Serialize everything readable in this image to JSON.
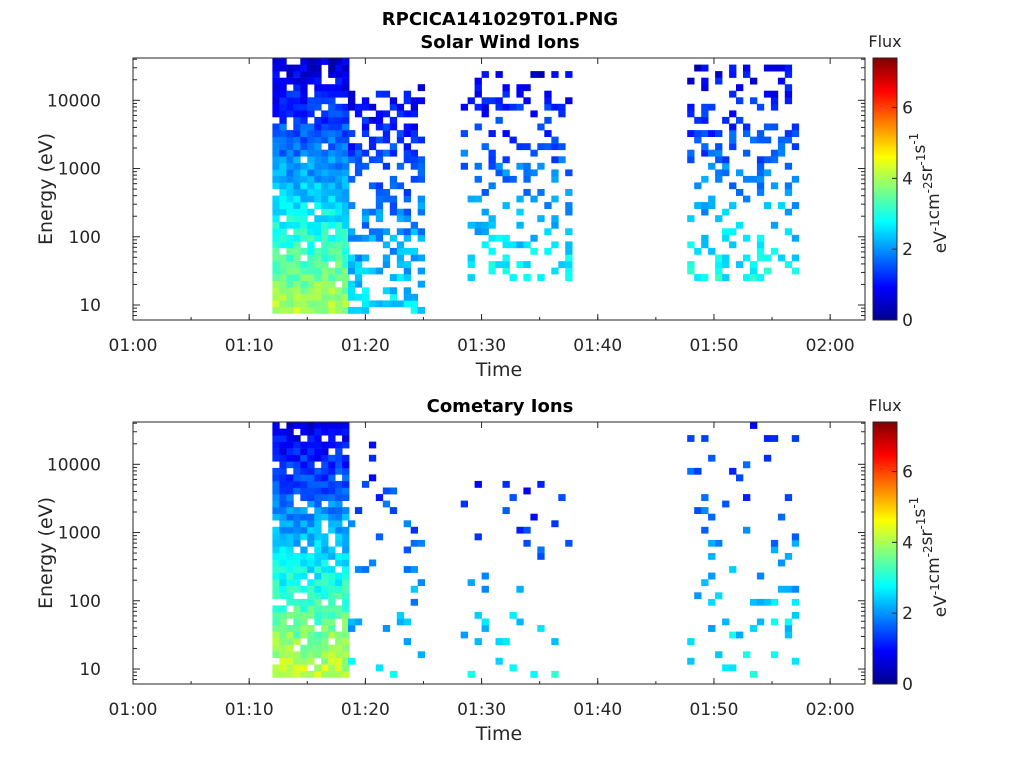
{
  "figure_title": "RPCICA141029T01.PNG",
  "colorbar": {
    "title": "Flux",
    "unit_label": "eV-1cm-2sr-1s-1",
    "ticks": [
      "0",
      "2",
      "4",
      "6"
    ],
    "range": [
      0,
      7.4
    ],
    "colormap": "jet"
  },
  "chart_data": [
    {
      "type": "heatmap",
      "title": "Solar Wind Ions",
      "xlabel": "Time",
      "ylabel": "Energy (eV)",
      "x_ticks": [
        "01:00",
        "01:10",
        "01:20",
        "01:30",
        "01:40",
        "01:50",
        "02:00"
      ],
      "xlim_minutes": [
        0,
        63
      ],
      "y_ticks": [
        "10",
        "100",
        "1000",
        "10000"
      ],
      "ylim_log10": [
        0.78,
        4.62
      ],
      "yscale": "log",
      "cells": [
        {
          "t0": 12.0,
          "t1": 18.5,
          "e0": 0.9,
          "e1": 4.6,
          "level_low": 4.0,
          "level_high": 0.5,
          "density": 0.92
        },
        {
          "t0": 18.5,
          "t1": 24.8,
          "e0": 0.9,
          "e1": 4.2,
          "level_low": 2.6,
          "level_high": 0.8,
          "density": 0.45
        },
        {
          "t0": 28.2,
          "t1": 37.6,
          "e0": 1.4,
          "e1": 4.4,
          "level_low": 2.8,
          "level_high": 0.7,
          "density": 0.28
        },
        {
          "t0": 47.7,
          "t1": 56.8,
          "e0": 1.4,
          "e1": 4.5,
          "level_low": 2.8,
          "level_high": 0.7,
          "density": 0.32
        }
      ]
    },
    {
      "type": "heatmap",
      "title": "Cometary Ions",
      "xlabel": "Time",
      "ylabel": "Energy (eV)",
      "x_ticks": [
        "01:00",
        "01:10",
        "01:20",
        "01:30",
        "01:40",
        "01:50",
        "02:00"
      ],
      "xlim_minutes": [
        0,
        63
      ],
      "y_ticks": [
        "10",
        "100",
        "1000",
        "10000"
      ],
      "ylim_log10": [
        0.78,
        4.62
      ],
      "yscale": "log",
      "cells": [
        {
          "t0": 12.0,
          "t1": 18.5,
          "e0": 0.9,
          "e1": 4.6,
          "level_low": 4.2,
          "level_high": 0.6,
          "density": 0.9
        },
        {
          "t0": 18.5,
          "t1": 24.8,
          "e0": 0.9,
          "e1": 4.4,
          "level_low": 2.6,
          "level_high": 1.0,
          "density": 0.08
        },
        {
          "t0": 28.2,
          "t1": 37.6,
          "e0": 0.9,
          "e1": 3.8,
          "level_low": 2.8,
          "level_high": 1.0,
          "density": 0.07
        },
        {
          "t0": 47.7,
          "t1": 56.8,
          "e0": 0.9,
          "e1": 4.6,
          "level_low": 2.8,
          "level_high": 1.0,
          "density": 0.08
        }
      ]
    }
  ]
}
